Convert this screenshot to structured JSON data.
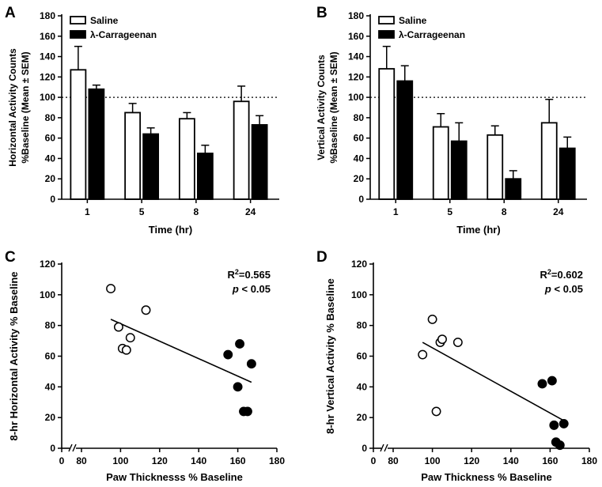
{
  "chart_data": [
    {
      "panel": "A",
      "type": "bar",
      "categories": [
        "1",
        "5",
        "8",
        "24"
      ],
      "series": [
        {
          "name": "Saline",
          "values": [
            127,
            85,
            79,
            96
          ],
          "errors": [
            23,
            9,
            6,
            15
          ],
          "fill": "#ffffff"
        },
        {
          "name": "λ-Carrageenan",
          "values": [
            108,
            64,
            45,
            73
          ],
          "errors": [
            4,
            6,
            8,
            9
          ],
          "fill": "#000000"
        }
      ],
      "reference_line": 100,
      "xlabel": "Time (hr)",
      "ylabel": [
        "Horizontal Activity Counts",
        "%Baseline (Mean ± SEM)"
      ],
      "ylim": [
        0,
        180
      ],
      "yticks": [
        "0",
        "20",
        "40",
        "60",
        "80",
        "100",
        "120",
        "140",
        "160",
        "180"
      ],
      "legend": "top-left"
    },
    {
      "panel": "B",
      "type": "bar",
      "categories": [
        "1",
        "5",
        "8",
        "24"
      ],
      "series": [
        {
          "name": "Saline",
          "values": [
            128,
            71,
            63,
            75
          ],
          "errors": [
            22,
            13,
            9,
            23
          ],
          "fill": "#ffffff"
        },
        {
          "name": "λ-Carrageenan",
          "values": [
            116,
            57,
            20,
            50
          ],
          "errors": [
            15,
            18,
            8,
            11
          ],
          "fill": "#000000"
        }
      ],
      "reference_line": 100,
      "xlabel": "Time (hr)",
      "ylabel": [
        "Vertical Activity Counts",
        "%Baseline (Mean ± SEM)"
      ],
      "ylim": [
        0,
        180
      ],
      "yticks": [
        "0",
        "20",
        "40",
        "60",
        "80",
        "100",
        "120",
        "140",
        "160",
        "180"
      ],
      "legend": "top-left"
    },
    {
      "panel": "C",
      "type": "scatter",
      "series": [
        {
          "name": "Saline",
          "style": "open",
          "x": [
            95,
            99,
            101,
            103,
            105,
            113
          ],
          "y": [
            104,
            79,
            65,
            64,
            72,
            90
          ]
        },
        {
          "name": "λ-Carrageenan",
          "style": "filled",
          "x": [
            155,
            160,
            161,
            163,
            165,
            167
          ],
          "y": [
            61,
            40,
            68,
            24,
            24,
            55
          ]
        }
      ],
      "fit_line": {
        "x": [
          95,
          167
        ],
        "y": [
          84,
          43
        ]
      },
      "annotation": {
        "r2_prefix": "R",
        "r2_sup": "2",
        "r2_value": "=0.565",
        "p_symbol": "p",
        "p_text": " < 0.05"
      },
      "xlabel": "Paw Thicknesss  % Baseline",
      "ylabel": "8-hr Horizontal Activity % Baseline",
      "xlim": [
        80,
        180
      ],
      "ylim": [
        0,
        120
      ],
      "xticks": [
        "0",
        "80",
        "100",
        "120",
        "140",
        "160",
        "180"
      ],
      "yticks": [
        "0",
        "20",
        "40",
        "60",
        "80",
        "100",
        "120"
      ]
    },
    {
      "panel": "D",
      "type": "scatter",
      "series": [
        {
          "name": "Saline",
          "style": "open",
          "x": [
            95,
            100,
            102,
            104,
            105,
            113
          ],
          "y": [
            61,
            84,
            24,
            69,
            71,
            69
          ]
        },
        {
          "name": "λ-Carrageenan",
          "style": "filled",
          "x": [
            156,
            161,
            162,
            163,
            165,
            167
          ],
          "y": [
            42,
            44,
            15,
            4,
            2,
            16
          ]
        }
      ],
      "fit_line": {
        "x": [
          95,
          167
        ],
        "y": [
          69,
          18
        ]
      },
      "annotation": {
        "r2_prefix": "R",
        "r2_sup": "2",
        "r2_value": "=0.602",
        "p_symbol": "p",
        "p_text": " < 0.05"
      },
      "xlabel": "Paw Thickness % Baseline",
      "ylabel": "8-hr Vertical Activity % Baseline",
      "xlim": [
        80,
        180
      ],
      "ylim": [
        0,
        120
      ],
      "xticks": [
        "0",
        "80",
        "100",
        "120",
        "140",
        "160",
        "180"
      ],
      "yticks": [
        "0",
        "20",
        "40",
        "60",
        "80",
        "100",
        "120"
      ]
    }
  ]
}
